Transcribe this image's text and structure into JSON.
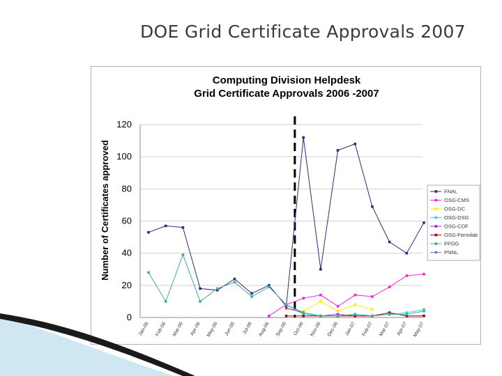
{
  "slide": {
    "title": "DOE Grid Certificate Approvals 2007"
  },
  "chart_data": {
    "type": "line",
    "title": "Computing Division Helpdesk",
    "subtitle": "Grid Certificate Approvals  2006 -2007",
    "ylabel": "Number of Certificates approved",
    "xlabel": "",
    "ylim": [
      0,
      120
    ],
    "yticks": [
      0,
      20,
      40,
      60,
      80,
      100,
      120
    ],
    "grid": true,
    "legend_position": "right",
    "categories": [
      "Jan-06",
      "Feb-06",
      "Mar-06",
      "Apr-06",
      "May-06",
      "Jun-06",
      "Jul-06",
      "Aug-06",
      "Sep-06",
      "Oct-06",
      "Nov-06",
      "Dec-06",
      "Jan-07",
      "Feb-07",
      "Mar-07",
      "Apr-07",
      "May-07"
    ],
    "series": [
      {
        "name": "FNAL",
        "color": "#2b2b7a",
        "values": [
          53,
          57,
          56,
          18,
          17,
          24,
          15,
          20,
          7,
          112,
          30,
          104,
          108,
          69,
          47,
          40,
          59
        ]
      },
      {
        "name": "OSG-CMS",
        "color": "#ff22dd",
        "values": [
          null,
          null,
          null,
          null,
          null,
          null,
          null,
          1,
          8,
          12,
          14,
          7,
          14,
          13,
          19,
          26,
          27
        ]
      },
      {
        "name": "OSG-DC",
        "color": "#ffee00",
        "values": [
          null,
          null,
          null,
          null,
          null,
          null,
          null,
          null,
          5,
          4,
          10,
          4,
          8,
          5,
          null,
          null,
          null
        ]
      },
      {
        "name": "OSG-DSG",
        "color": "#22dddd",
        "values": [
          null,
          null,
          null,
          null,
          null,
          null,
          null,
          null,
          8,
          2,
          1,
          1,
          2,
          1,
          2,
          3,
          5
        ]
      },
      {
        "name": "OSG-CDF",
        "color": "#aa22cc",
        "values": [
          null,
          null,
          null,
          null,
          null,
          null,
          null,
          null,
          6,
          3,
          1,
          2,
          1,
          1,
          3,
          1,
          1
        ]
      },
      {
        "name": "OSG-Fermilab",
        "color": "#991111",
        "values": [
          null,
          null,
          null,
          null,
          null,
          null,
          null,
          null,
          1,
          1,
          1,
          1,
          1,
          1,
          3,
          1,
          1
        ]
      },
      {
        "name": "PPDG",
        "color": "#44aa99",
        "values": [
          28,
          10,
          39,
          10,
          18,
          22,
          13,
          19,
          8,
          3,
          1,
          1,
          2,
          1,
          2,
          2,
          4
        ]
      },
      {
        "name": "PNNL",
        "color": "#7777cc",
        "values": [
          null,
          null,
          null,
          null,
          null,
          null,
          null,
          null,
          null,
          null,
          null,
          null,
          null,
          null,
          null,
          null,
          null
        ]
      }
    ],
    "annotations": [
      {
        "type": "vertical-dashed-line",
        "between": [
          "Sep-06",
          "Oct-06"
        ]
      }
    ]
  }
}
